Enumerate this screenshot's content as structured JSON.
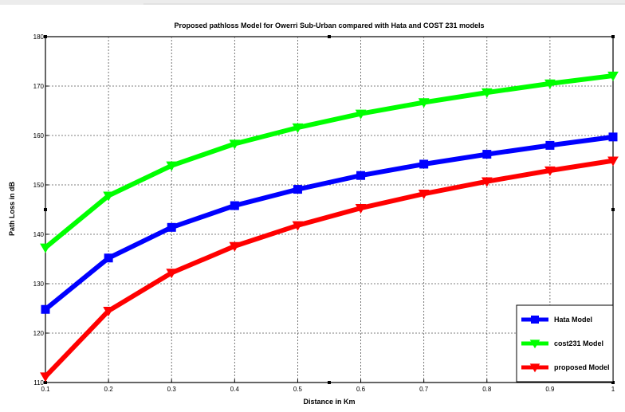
{
  "chart_data": {
    "type": "line",
    "title": "Proposed pathloss Model for Owerri Sub-Urban compared with Hata and COST 231 models",
    "xlabel": "Distance in Km",
    "ylabel": "Path Loss in dB",
    "xlim": [
      0.1,
      1
    ],
    "ylim": [
      110,
      180
    ],
    "x": [
      0.1,
      0.2,
      0.3,
      0.4,
      0.5,
      0.6,
      0.7,
      0.8,
      0.9,
      1
    ],
    "xticks": [
      "0.1",
      "0.2",
      "0.3",
      "0.4",
      "0.5",
      "0.6",
      "0.7",
      "0.8",
      "0.9",
      "1"
    ],
    "yticks": [
      "110",
      "120",
      "130",
      "140",
      "150",
      "160",
      "170",
      "180"
    ],
    "grid": true,
    "legend_position": "bottom-right",
    "series": [
      {
        "name": "Hata Model",
        "color": "#0000ff",
        "marker": "square",
        "values": [
          124.8,
          135.2,
          141.4,
          145.8,
          149.1,
          151.9,
          154.2,
          156.2,
          158.0,
          159.7
        ]
      },
      {
        "name": "cost231 Model",
        "color": "#00ff00",
        "marker": "triangle-down",
        "values": [
          137.3,
          147.8,
          153.9,
          158.3,
          161.6,
          164.4,
          166.7,
          168.7,
          170.5,
          172.1
        ]
      },
      {
        "name": "proposed Model",
        "color": "#ff0000",
        "marker": "triangle-down",
        "values": [
          111.2,
          124.5,
          132.2,
          137.6,
          141.8,
          145.3,
          148.2,
          150.7,
          152.9,
          154.9
        ]
      }
    ]
  }
}
